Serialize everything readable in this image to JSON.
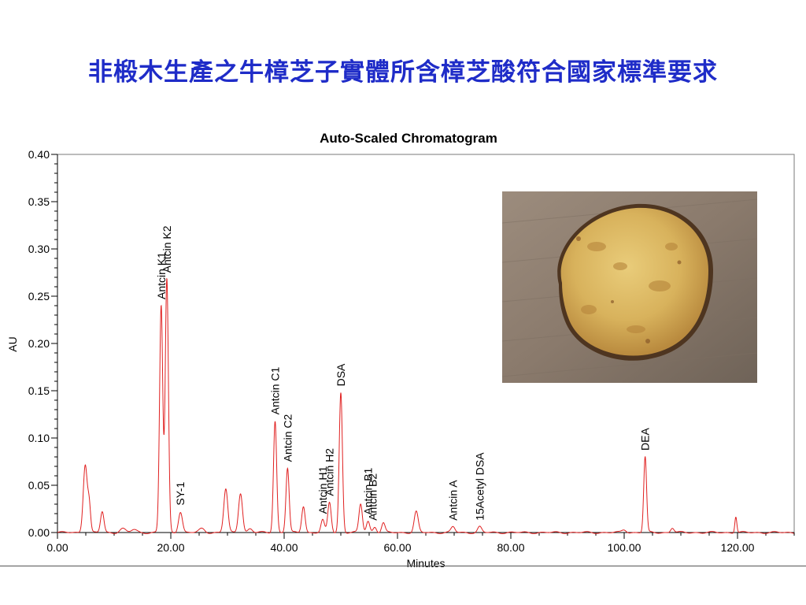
{
  "slide": {
    "title": "非椴木生產之牛樟芝子實體所含樟芝酸符合國家標準要求"
  },
  "photo": {
    "icon": "mushroom-fruiting-body-photo",
    "colors": {
      "background": "#8a7a6c",
      "cap": "#d9b762",
      "rim": "#5a3d22"
    }
  },
  "chart_data": {
    "type": "line",
    "title": "Auto-Scaled Chromatogram",
    "xlabel": "Minutes",
    "ylabel": "AU",
    "xlim": [
      0,
      130
    ],
    "ylim": [
      0,
      0.4
    ],
    "x_ticks": [
      "0.00",
      "20.00",
      "40.00",
      "60.00",
      "80.00",
      "100.00",
      "120.00"
    ],
    "y_ticks": [
      "0.00",
      "0.05",
      "0.10",
      "0.15",
      "0.20",
      "0.25",
      "0.30",
      "0.35",
      "0.40"
    ],
    "grid": false,
    "line_color": "#e02020",
    "baseline": 0.0,
    "series": [
      {
        "peaks": [
          {
            "x": 4.9,
            "height": 0.072,
            "width": 0.35
          },
          {
            "x": 5.6,
            "height": 0.028,
            "width": 0.25
          },
          {
            "x": 7.9,
            "height": 0.022,
            "width": 0.3
          },
          {
            "x": 11.5,
            "height": 0.004,
            "width": 0.5
          },
          {
            "x": 13.5,
            "height": 0.003,
            "width": 0.5
          },
          {
            "x": 18.3,
            "height": 0.24,
            "width": 0.28
          },
          {
            "x": 19.3,
            "height": 0.268,
            "width": 0.28
          },
          {
            "x": 21.7,
            "height": 0.022,
            "width": 0.35
          },
          {
            "x": 25.5,
            "height": 0.004,
            "width": 0.5
          },
          {
            "x": 29.7,
            "height": 0.046,
            "width": 0.35
          },
          {
            "x": 32.3,
            "height": 0.042,
            "width": 0.35
          },
          {
            "x": 34.0,
            "height": 0.004,
            "width": 0.4
          },
          {
            "x": 38.4,
            "height": 0.118,
            "width": 0.28
          },
          {
            "x": 40.6,
            "height": 0.068,
            "width": 0.28
          },
          {
            "x": 43.4,
            "height": 0.028,
            "width": 0.3
          },
          {
            "x": 46.8,
            "height": 0.013,
            "width": 0.3
          },
          {
            "x": 48.0,
            "height": 0.032,
            "width": 0.3
          },
          {
            "x": 50.0,
            "height": 0.148,
            "width": 0.28
          },
          {
            "x": 53.5,
            "height": 0.03,
            "width": 0.3
          },
          {
            "x": 54.8,
            "height": 0.012,
            "width": 0.3
          },
          {
            "x": 56.0,
            "height": 0.006,
            "width": 0.3
          },
          {
            "x": 57.5,
            "height": 0.01,
            "width": 0.3
          },
          {
            "x": 63.3,
            "height": 0.022,
            "width": 0.35
          },
          {
            "x": 69.8,
            "height": 0.006,
            "width": 0.35
          },
          {
            "x": 74.5,
            "height": 0.006,
            "width": 0.35
          },
          {
            "x": 100.0,
            "height": 0.003,
            "width": 0.4
          },
          {
            "x": 103.7,
            "height": 0.08,
            "width": 0.25
          },
          {
            "x": 108.5,
            "height": 0.005,
            "width": 0.3
          },
          {
            "x": 119.7,
            "height": 0.017,
            "width": 0.18
          }
        ]
      }
    ],
    "annotations": [
      {
        "label": "Antcin K1",
        "x": 18.3,
        "y": 0.24
      },
      {
        "label": "Antcin K2",
        "x": 19.3,
        "y": 0.268
      },
      {
        "label": "SY-1",
        "x": 21.7,
        "y": 0.022
      },
      {
        "label": "Antcin C1",
        "x": 38.4,
        "y": 0.118
      },
      {
        "label": "Antcin C2",
        "x": 40.6,
        "y": 0.068
      },
      {
        "label": "Antcin H1",
        "x": 46.8,
        "y": 0.013
      },
      {
        "label": "Antcin H2",
        "x": 48.0,
        "y": 0.032
      },
      {
        "label": "DSA",
        "x": 50.0,
        "y": 0.148
      },
      {
        "label": "Antcin B1",
        "x": 54.8,
        "y": 0.012
      },
      {
        "label": "Antcin B2",
        "x": 55.6,
        "y": 0.006
      },
      {
        "label": "Antcin A",
        "x": 69.8,
        "y": 0.006
      },
      {
        "label": "15Acetyl DSA",
        "x": 74.5,
        "y": 0.006
      },
      {
        "label": "DEA",
        "x": 103.7,
        "y": 0.08
      }
    ]
  }
}
